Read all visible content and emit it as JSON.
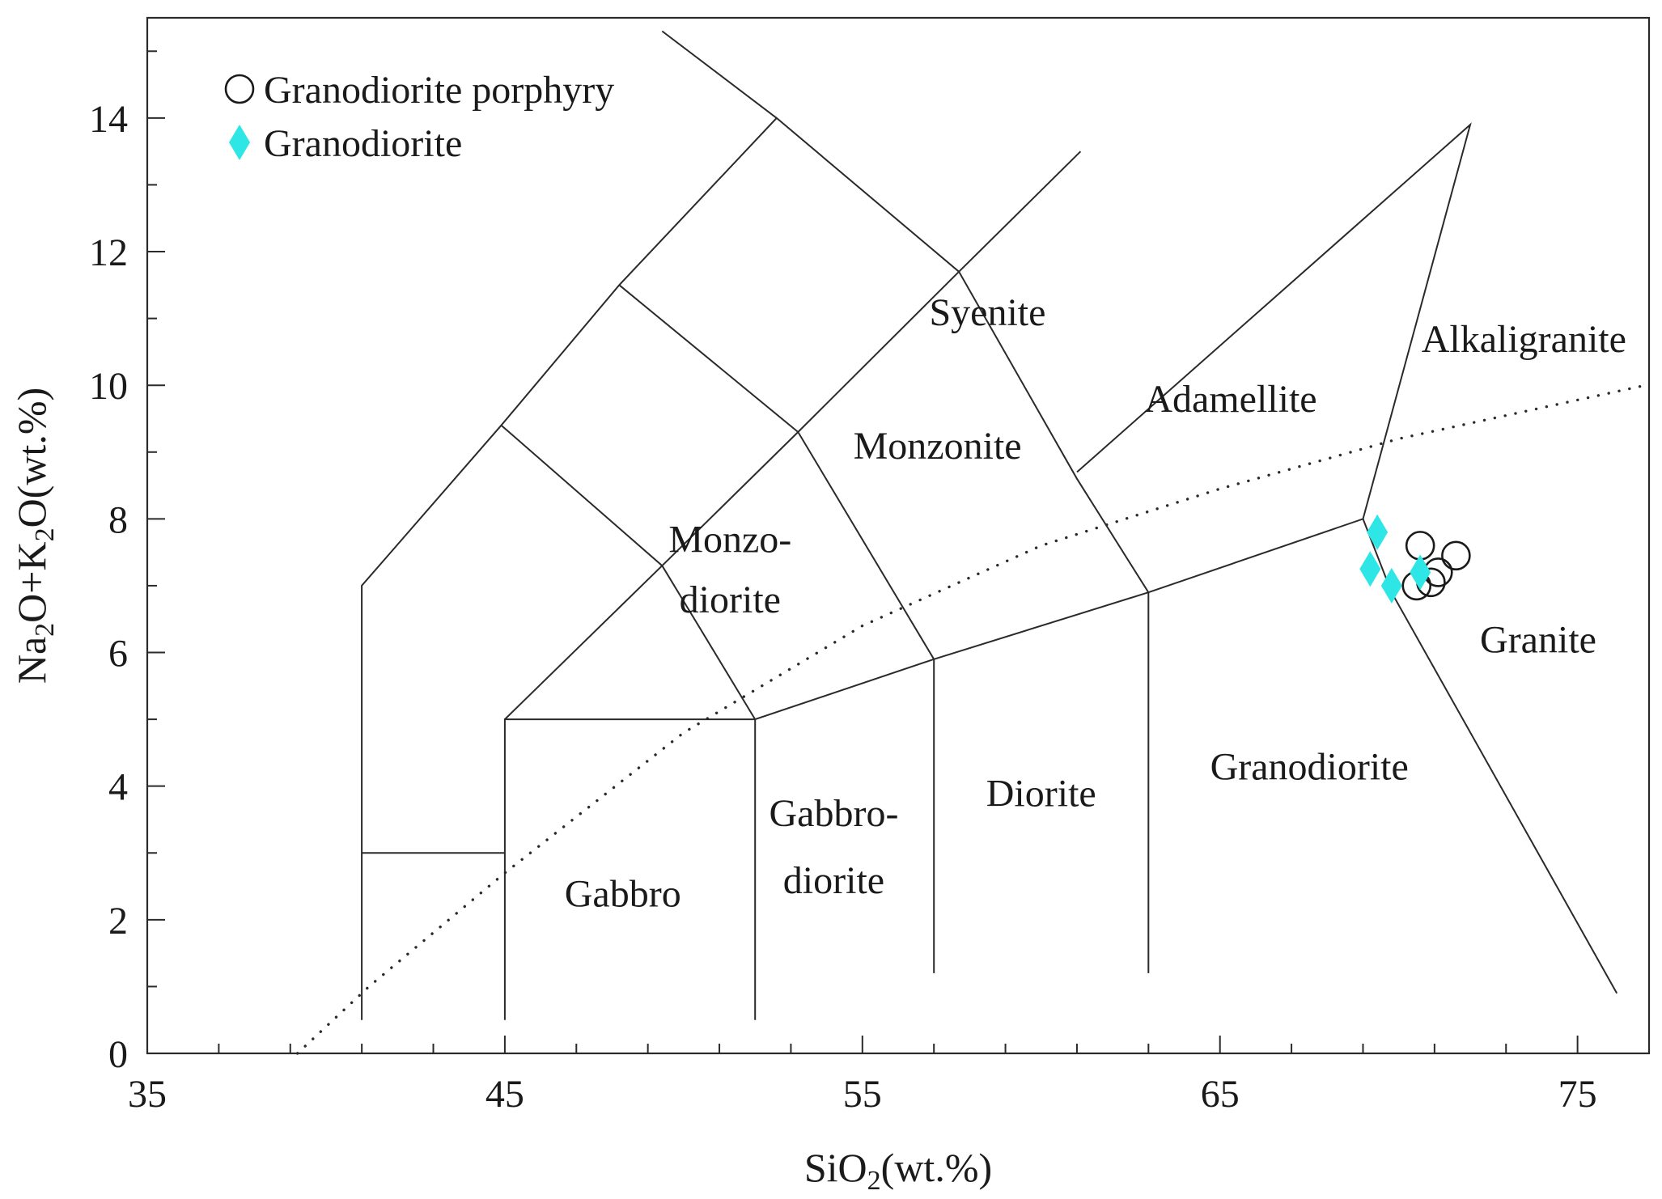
{
  "chart_data": {
    "type": "scatter",
    "title": "",
    "xlabel_main": "SiO",
    "xlabel_sub": "2",
    "xlabel_tail": "(wt.%)",
    "ylabel_parts": [
      "Na",
      "2",
      "O+K",
      "2",
      "O(wt.%)"
    ],
    "xlim": [
      35,
      77
    ],
    "ylim": [
      0,
      15.5
    ],
    "x_ticks": [
      35,
      45,
      55,
      65,
      75
    ],
    "x_minor_ticks": [
      37,
      39,
      41,
      43,
      47,
      49,
      51,
      53,
      57,
      59,
      61,
      63,
      67,
      69,
      71,
      73,
      77
    ],
    "y_ticks": [
      0,
      2,
      4,
      6,
      8,
      10,
      12,
      14
    ],
    "y_minor_ticks": [
      1,
      3,
      5,
      7,
      9,
      11,
      13,
      15
    ],
    "grid": false,
    "legend_position": "top-left",
    "series": [
      {
        "name": "Granodiorite porphyry",
        "marker": "circle-open",
        "color": "#1a1a1a",
        "points": [
          [
            70.6,
            7.6
          ],
          [
            71.6,
            7.45
          ],
          [
            71.1,
            7.2
          ],
          [
            70.9,
            7.05
          ],
          [
            70.5,
            7.0
          ]
        ]
      },
      {
        "name": "Granodiorite",
        "marker": "diamond-filled",
        "color": "#2ee6e6",
        "points": [
          [
            69.4,
            7.8
          ],
          [
            69.2,
            7.25
          ],
          [
            69.8,
            7.0
          ],
          [
            70.6,
            7.2
          ]
        ]
      }
    ],
    "boundaries": [
      [
        [
          41,
          0.5
        ],
        [
          41,
          7
        ],
        [
          44.9,
          9.4
        ],
        [
          48.2,
          11.5
        ],
        [
          52.6,
          14
        ],
        [
          57.7,
          11.7
        ],
        [
          61,
          8.6
        ],
        [
          63,
          6.9
        ],
        [
          63,
          1.2
        ]
      ],
      [
        [
          41,
          3
        ],
        [
          45,
          3
        ]
      ],
      [
        [
          45,
          0.5
        ],
        [
          45,
          5
        ],
        [
          52,
          5
        ],
        [
          52,
          0.5
        ]
      ],
      [
        [
          52,
          5
        ],
        [
          57,
          5.9
        ],
        [
          63,
          6.9
        ],
        [
          69,
          8
        ],
        [
          72,
          13.9
        ],
        [
          61,
          8.7
        ]
      ],
      [
        [
          57,
          1.2
        ],
        [
          57,
          5.9
        ],
        [
          53.2,
          9.3
        ],
        [
          48.2,
          11.5
        ]
      ],
      [
        [
          44.9,
          9.4
        ],
        [
          49.4,
          7.3
        ],
        [
          52,
          5
        ]
      ],
      [
        [
          45,
          5
        ],
        [
          49.4,
          7.3
        ],
        [
          53.2,
          9.3
        ],
        [
          57.7,
          11.7
        ],
        [
          61.1,
          13.5
        ]
      ],
      [
        [
          52.6,
          14
        ],
        [
          49.4,
          15.3
        ]
      ],
      [
        [
          69,
          8
        ],
        [
          69.8,
          6.9
        ],
        [
          76.1,
          0.9
        ]
      ]
    ],
    "dotted_curve": [
      [
        39.2,
        0
      ],
      [
        41.2,
        1
      ],
      [
        45,
        2.7
      ],
      [
        50,
        4.8
      ],
      [
        55,
        6.4
      ],
      [
        60,
        7.6
      ],
      [
        65,
        8.45
      ],
      [
        70,
        9.2
      ],
      [
        76.9,
        10
      ]
    ],
    "field_labels": [
      {
        "text": "Syenite",
        "x": 58.5,
        "y": 10.9
      },
      {
        "text": "Alkaligranite",
        "x": 73.5,
        "y": 10.5
      },
      {
        "text": "Adamellite",
        "x": 65.3,
        "y": 9.6
      },
      {
        "text": "Monzonite",
        "x": 57.1,
        "y": 8.9
      },
      {
        "text": "Monzo-",
        "x": 51.3,
        "y": 7.5
      },
      {
        "text": "diorite",
        "x": 51.3,
        "y": 6.6
      },
      {
        "text": "Granite",
        "x": 73.9,
        "y": 6.0
      },
      {
        "text": "Granodiorite",
        "x": 67.5,
        "y": 4.1
      },
      {
        "text": "Diorite",
        "x": 60,
        "y": 3.7
      },
      {
        "text": "Gabbro-",
        "x": 54.2,
        "y": 3.4
      },
      {
        "text": "diorite",
        "x": 54.2,
        "y": 2.4
      },
      {
        "text": "Gabbro",
        "x": 48.3,
        "y": 2.2
      }
    ]
  }
}
